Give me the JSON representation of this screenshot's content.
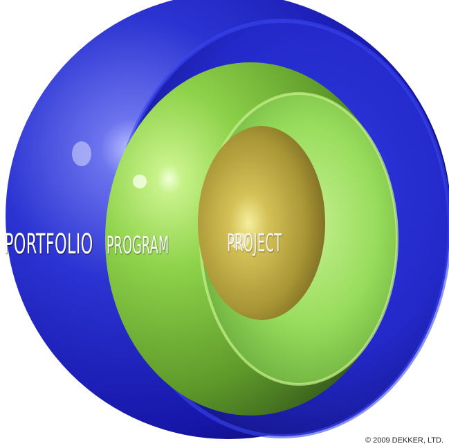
{
  "diagram": {
    "labels": {
      "outer": "PORTFOLIO",
      "middle": "PROGRAM",
      "inner": "PROJECT"
    },
    "copyright": "© 2009 DEKKER, LTD."
  },
  "colors": {
    "outer_sphere": "#1a1fb8",
    "middle_sphere": "#8dd24a",
    "inner_sphere": "#b8a43a"
  }
}
